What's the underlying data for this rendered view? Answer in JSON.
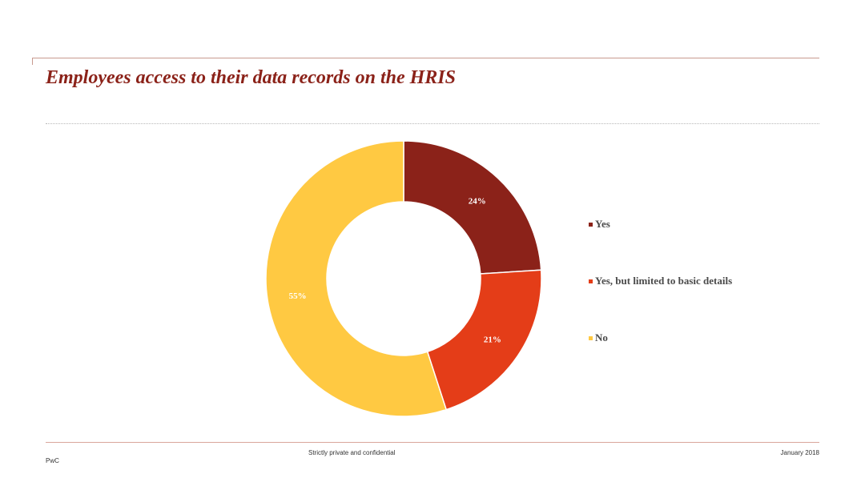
{
  "slide": {
    "title": "Employees access to their data records on the HRIS"
  },
  "footer": {
    "confidential": "Strictly private and confidential",
    "date": "January 2018",
    "company": "PwC"
  },
  "colors": {
    "accent": "#8b2219",
    "rule": "#c89a8f"
  },
  "chart_data": {
    "type": "pie",
    "donut": true,
    "legend_position": "right",
    "slices": [
      {
        "label": "Yes",
        "value": 24,
        "value_label": "24%",
        "color": "#8b2219"
      },
      {
        "label": "Yes, but limited to basic details",
        "value": 21,
        "value_label": "21%",
        "color": "#e43d18"
      },
      {
        "label": "No",
        "value": 55,
        "value_label": "55%",
        "color": "#ffc942"
      }
    ]
  }
}
